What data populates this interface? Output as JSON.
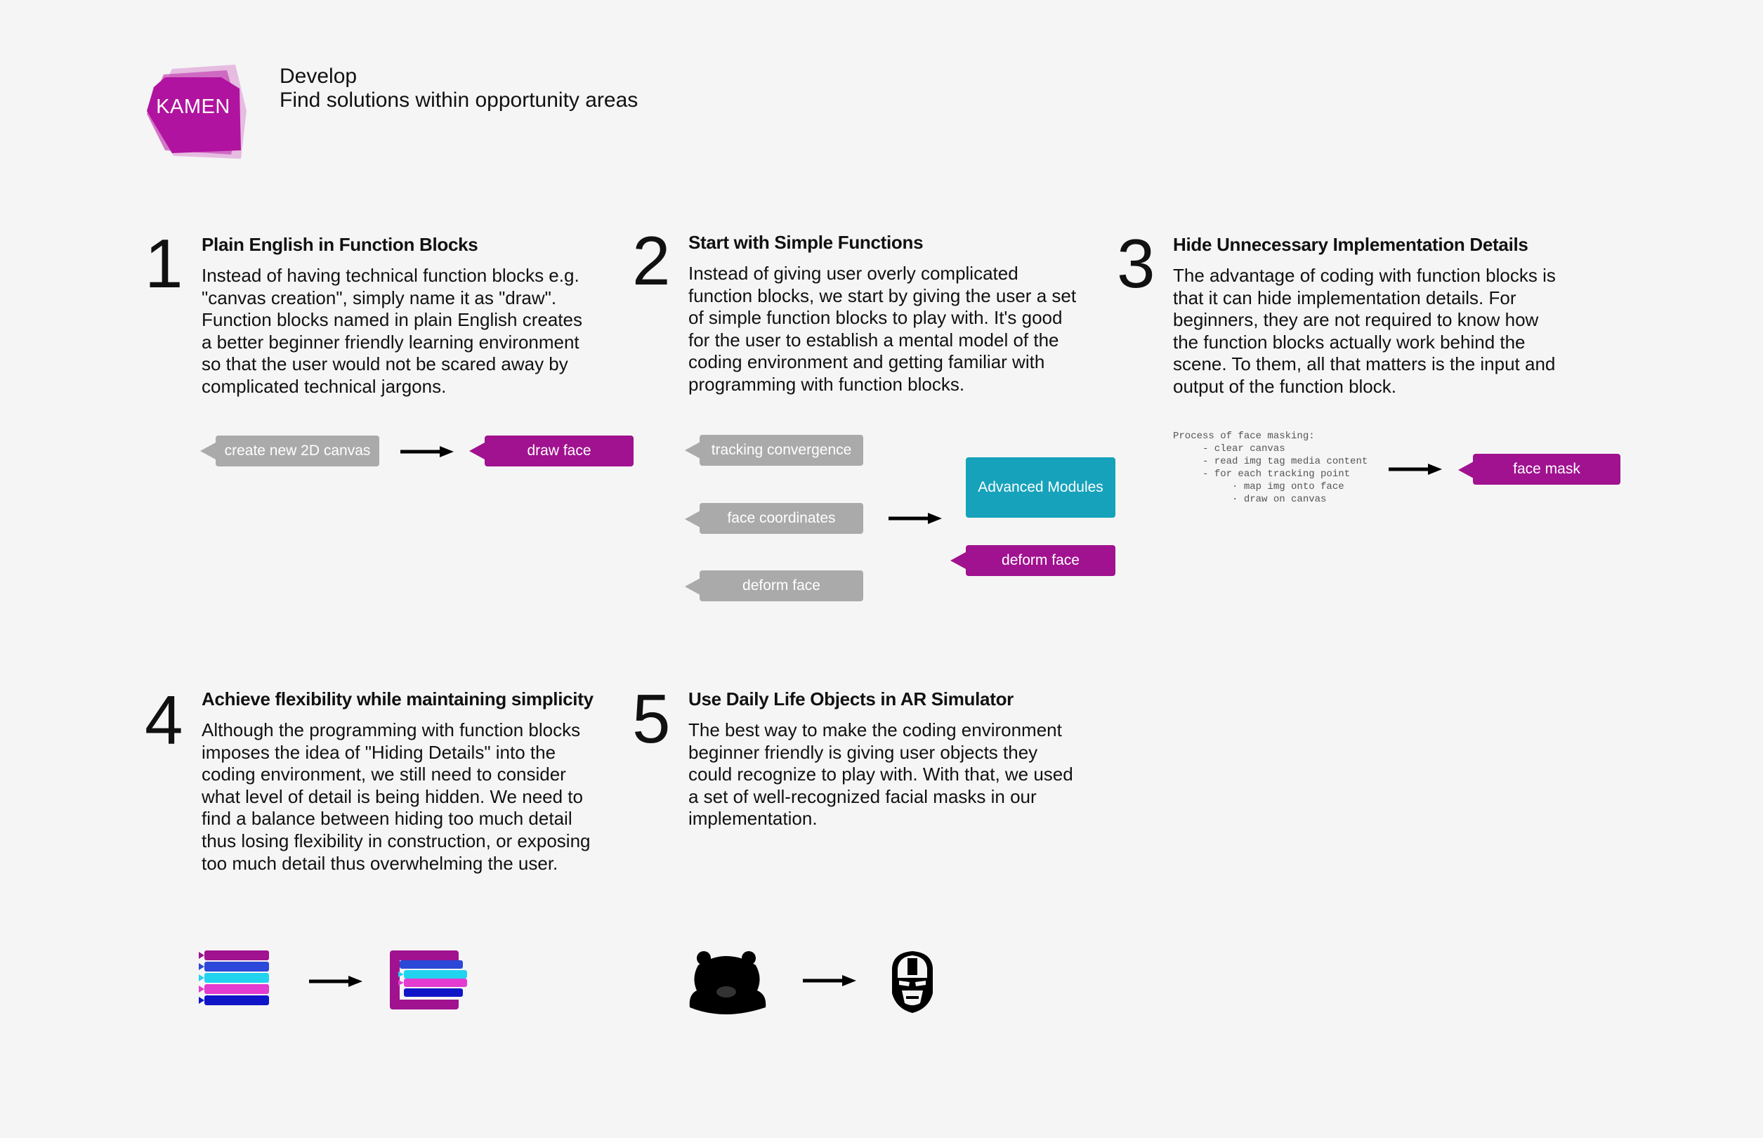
{
  "header": {
    "logo_text": "KAMEN",
    "title": "Develop",
    "subtitle": "Find solutions within opportunity areas"
  },
  "colors": {
    "background": "#f5f5f5",
    "brand_magenta": "#a0128f",
    "block_gray": "#aaaaaa",
    "block_teal": "#16a2bb"
  },
  "sections": [
    {
      "number": "1",
      "title": "Plain English in Function Blocks",
      "body": "Instead of having technical function blocks e.g. \"canvas creation\", simply name it as \"draw\". Function blocks named in plain English creates a better beginner friendly learning environment so that the user would not be scared away by complicated technical jargons.",
      "blocks": {
        "from": "create new 2D canvas",
        "to": "draw face"
      }
    },
    {
      "number": "2",
      "title": "Start with Simple Functions",
      "body": "Instead of giving user overly complicated function blocks, we start by giving the user a set of simple function blocks to play with. It's good for the user to establish a mental model of the coding environment and getting familiar with programming with function blocks.",
      "blocks": {
        "from": [
          "tracking convergence",
          "face coordinates",
          "deform face"
        ],
        "module": "Advanced Modules",
        "to": "deform face"
      }
    },
    {
      "number": "3",
      "title": "Hide Unnecessary Implementation Details",
      "body": "The advantage of coding with function blocks is that it can hide implementation details. For beginners, they are not required to know how the function blocks actually work behind the scene. To them, all that matters is the input and output of the function block.",
      "code": "Process of face masking:\n     - clear canvas\n     - read img tag media content\n     - for each tracking point\n          · map img onto face\n          · draw on canvas",
      "blocks": {
        "to": "face mask"
      }
    },
    {
      "number": "4",
      "title": "Achieve flexibility while maintaining simplicity",
      "body": "Although the programming with function blocks imposes the idea of \"Hiding Details\" into the coding environment, we still need to consider what level of detail is being hidden. We need to find a balance between hiding too much detail thus losing flexibility in construction, or exposing too much detail thus overwhelming the user.",
      "icons": [
        "stacked-blocks-icon",
        "nested-blocks-icon"
      ]
    },
    {
      "number": "5",
      "title": "Use Daily Life Objects in AR Simulator",
      "body": "The best way to make the coding environment beginner friendly is giving user objects they could recognize to play with. With that, we used a set of well-recognized facial masks in our implementation.",
      "icons": [
        "bear-mask-icon",
        "iron-man-mask-icon"
      ]
    }
  ]
}
